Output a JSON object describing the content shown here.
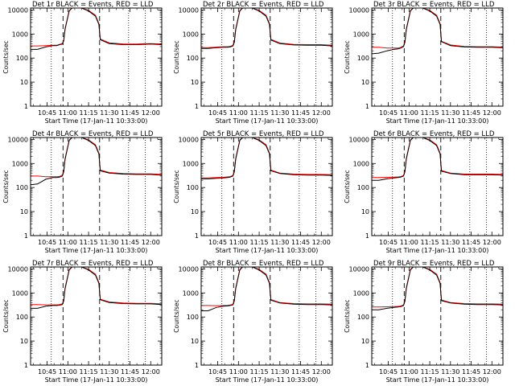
{
  "x_axis": {
    "ticks": [
      "10:45",
      "11:00",
      "11:15",
      "11:30",
      "11:45",
      "12:00"
    ],
    "tick_minutes_since_1030": [
      15,
      30,
      45,
      60,
      75,
      90
    ],
    "label": "Start Time (17-Jan-11 10:33:00)",
    "range_minutes_since_1030": [
      3,
      98
    ]
  },
  "y_axis": {
    "scale": "log",
    "ticks": [
      "1",
      "10",
      "100",
      "1000",
      "10000"
    ],
    "tick_values": [
      1,
      10,
      100,
      1000,
      10000
    ],
    "label": "Counts/sec",
    "range": [
      1,
      12000
    ]
  },
  "colors": {
    "events": "#000000",
    "lld": "#ff0000",
    "axes": "#000000"
  },
  "markers": {
    "dashed_vertical_minutes": [
      26.5,
      53
    ],
    "dotted_vertical_minutes": [
      18,
      74,
      86
    ]
  },
  "chart_data": [
    {
      "type": "line",
      "title": "Det 1r BLACK = Events, RED = LLD",
      "xlabel": "Start Time (17-Jan-11 10:33:00)",
      "ylabel": "Counts/sec",
      "yscale": "log",
      "series": [
        {
          "name": "Events",
          "color": "#000000",
          "x": [
            3,
            8,
            14,
            19,
            22,
            24,
            26,
            27,
            28,
            31,
            33,
            36,
            40,
            45,
            50,
            52.5,
            53.5,
            60,
            70,
            80,
            90,
            98
          ],
          "y": [
            230,
            230,
            290,
            330,
            330,
            360,
            380,
            520,
            1600,
            9000,
            12000,
            12000,
            12000,
            9000,
            5500,
            2500,
            580,
            400,
            360,
            360,
            380,
            360
          ]
        },
        {
          "name": "LLD",
          "color": "#ff0000",
          "x": [
            3,
            8,
            14,
            19,
            22,
            24,
            26,
            27,
            28,
            31,
            33,
            36,
            40,
            45,
            50,
            52.5,
            53.5,
            60,
            70,
            80,
            90,
            98
          ],
          "y": [
            320,
            320,
            330,
            340,
            340,
            370,
            400,
            560,
            1700,
            9500,
            12000,
            12000,
            12000,
            9500,
            6000,
            2700,
            620,
            430,
            380,
            380,
            400,
            380
          ]
        }
      ]
    },
    {
      "type": "line",
      "title": "Det 2r BLACK = Events, RED = LLD",
      "xlabel": "Start Time (17-Jan-11 10:33:00)",
      "ylabel": "Counts/sec",
      "yscale": "log",
      "series": [
        {
          "name": "Events",
          "color": "#000000",
          "x": [
            3,
            8,
            14,
            19,
            22,
            24,
            26,
            27,
            28,
            31,
            33,
            36,
            40,
            45,
            50,
            52.5,
            53.5,
            60,
            70,
            80,
            90,
            98
          ],
          "y": [
            250,
            250,
            270,
            280,
            280,
            290,
            320,
            450,
            1500,
            9000,
            12000,
            12000,
            12000,
            9000,
            5500,
            2500,
            560,
            400,
            350,
            340,
            340,
            320
          ]
        },
        {
          "name": "LLD",
          "color": "#ff0000",
          "x": [
            3,
            8,
            14,
            19,
            22,
            24,
            26,
            27,
            28,
            31,
            33,
            36,
            40,
            45,
            50,
            52.5,
            53.5,
            60,
            70,
            80,
            90,
            98
          ],
          "y": [
            270,
            270,
            285,
            295,
            295,
            305,
            340,
            480,
            1600,
            9500,
            12000,
            12000,
            12000,
            9500,
            6000,
            2700,
            600,
            420,
            370,
            360,
            360,
            340
          ]
        }
      ]
    },
    {
      "type": "line",
      "title": "Det 3r BLACK = Events, RED = LLD",
      "xlabel": "Start Time (17-Jan-11 10:33:00)",
      "ylabel": "Counts/sec",
      "yscale": "log",
      "series": [
        {
          "name": "Events",
          "color": "#000000",
          "x": [
            3,
            8,
            14,
            19,
            22,
            24,
            26,
            27,
            28,
            31,
            33,
            36,
            40,
            45,
            50,
            52.5,
            53.5,
            60,
            70,
            80,
            90,
            98
          ],
          "y": [
            150,
            160,
            200,
            230,
            240,
            260,
            300,
            450,
            1500,
            9000,
            12000,
            12000,
            12000,
            9000,
            5500,
            2500,
            480,
            330,
            290,
            280,
            280,
            270
          ]
        },
        {
          "name": "LLD",
          "color": "#ff0000",
          "x": [
            3,
            8,
            14,
            19,
            22,
            24,
            26,
            27,
            28,
            31,
            33,
            36,
            40,
            45,
            50,
            52.5,
            53.5,
            60,
            70,
            80,
            90,
            98
          ],
          "y": [
            280,
            280,
            260,
            260,
            260,
            275,
            320,
            480,
            1600,
            9500,
            12000,
            12000,
            12000,
            9500,
            6000,
            2700,
            500,
            350,
            305,
            295,
            295,
            285
          ]
        }
      ]
    },
    {
      "type": "line",
      "title": "Det 4r BLACK = Events, RED = LLD",
      "xlabel": "Start Time (17-Jan-11 10:33:00)",
      "ylabel": "Counts/sec",
      "yscale": "log",
      "series": [
        {
          "name": "Events",
          "color": "#000000",
          "x": [
            3,
            8,
            14,
            19,
            22,
            24,
            26,
            27,
            28,
            31,
            33,
            36,
            40,
            45,
            50,
            52.5,
            53.5,
            60,
            70,
            80,
            90,
            98
          ],
          "y": [
            130,
            140,
            220,
            260,
            260,
            270,
            300,
            450,
            1500,
            9000,
            12000,
            12000,
            12000,
            9000,
            5500,
            2500,
            500,
            400,
            360,
            350,
            350,
            330
          ]
        },
        {
          "name": "LLD",
          "color": "#ff0000",
          "x": [
            3,
            8,
            14,
            19,
            22,
            24,
            26,
            27,
            28,
            31,
            33,
            36,
            40,
            45,
            50,
            52.5,
            53.5,
            60,
            70,
            80,
            90,
            98
          ],
          "y": [
            300,
            300,
            280,
            280,
            280,
            290,
            330,
            480,
            1600,
            9500,
            12000,
            12000,
            12000,
            9500,
            6000,
            2700,
            530,
            420,
            380,
            370,
            370,
            350
          ]
        }
      ]
    },
    {
      "type": "line",
      "title": "Det 5r BLACK = Events, RED = LLD",
      "xlabel": "Start Time (17-Jan-11 10:33:00)",
      "ylabel": "Counts/sec",
      "yscale": "log",
      "series": [
        {
          "name": "Events",
          "color": "#000000",
          "x": [
            3,
            8,
            14,
            19,
            22,
            24,
            26,
            27,
            28,
            31,
            33,
            36,
            40,
            45,
            50,
            52.5,
            53.5,
            60,
            70,
            80,
            90,
            98
          ],
          "y": [
            230,
            230,
            240,
            250,
            260,
            270,
            300,
            450,
            1500,
            9000,
            12000,
            12000,
            12000,
            9000,
            5500,
            2500,
            500,
            380,
            340,
            330,
            330,
            320
          ]
        },
        {
          "name": "LLD",
          "color": "#ff0000",
          "x": [
            3,
            8,
            14,
            19,
            22,
            24,
            26,
            27,
            28,
            31,
            33,
            36,
            40,
            45,
            50,
            52.5,
            53.5,
            60,
            70,
            80,
            90,
            98
          ],
          "y": [
            250,
            250,
            260,
            265,
            275,
            285,
            320,
            480,
            1600,
            9500,
            12000,
            12000,
            12000,
            9500,
            6000,
            2700,
            530,
            400,
            360,
            350,
            350,
            340
          ]
        }
      ]
    },
    {
      "type": "line",
      "title": "Det 6r BLACK = Events, RED = LLD",
      "xlabel": "Start Time (17-Jan-11 10:33:00)",
      "ylabel": "Counts/sec",
      "yscale": "log",
      "series": [
        {
          "name": "Events",
          "color": "#000000",
          "x": [
            3,
            8,
            14,
            19,
            22,
            24,
            26,
            27,
            28,
            31,
            33,
            36,
            40,
            45,
            50,
            52.5,
            53.5,
            60,
            70,
            80,
            90,
            98
          ],
          "y": [
            200,
            200,
            230,
            250,
            260,
            270,
            300,
            450,
            1500,
            9000,
            12000,
            12000,
            12000,
            9000,
            5500,
            2500,
            480,
            380,
            340,
            340,
            340,
            330
          ]
        },
        {
          "name": "LLD",
          "color": "#ff0000",
          "x": [
            3,
            8,
            14,
            19,
            22,
            24,
            26,
            27,
            28,
            31,
            33,
            36,
            40,
            45,
            50,
            52.5,
            53.5,
            60,
            70,
            80,
            90,
            98
          ],
          "y": [
            260,
            260,
            265,
            270,
            275,
            285,
            320,
            480,
            1600,
            9500,
            12000,
            12000,
            12000,
            9500,
            6000,
            2700,
            510,
            400,
            360,
            360,
            360,
            350
          ]
        }
      ]
    },
    {
      "type": "line",
      "title": "Det 7r BLACK = Events, RED = LLD",
      "xlabel": "Start Time (17-Jan-11 10:33:00)",
      "ylabel": "Counts/sec",
      "yscale": "log",
      "series": [
        {
          "name": "Events",
          "color": "#000000",
          "x": [
            3,
            8,
            14,
            19,
            22,
            24,
            26,
            27,
            28,
            31,
            33,
            36,
            40,
            45,
            50,
            52.5,
            53.5,
            60,
            70,
            80,
            90,
            98
          ],
          "y": [
            230,
            230,
            280,
            300,
            300,
            310,
            330,
            470,
            1500,
            9000,
            12000,
            12000,
            12000,
            9000,
            5500,
            2500,
            520,
            400,
            360,
            350,
            350,
            330
          ]
        },
        {
          "name": "LLD",
          "color": "#ff0000",
          "x": [
            3,
            8,
            14,
            19,
            22,
            24,
            26,
            27,
            28,
            31,
            33,
            36,
            40,
            45,
            50,
            52.5,
            53.5,
            60,
            70,
            80,
            90,
            98
          ],
          "y": [
            330,
            330,
            320,
            320,
            320,
            330,
            350,
            500,
            1600,
            9500,
            12000,
            12000,
            12000,
            9500,
            6000,
            2700,
            550,
            420,
            380,
            370,
            370,
            350
          ]
        }
      ]
    },
    {
      "type": "line",
      "title": "Det 8r BLACK = Events, RED = LLD",
      "xlabel": "Start Time (17-Jan-11 10:33:00)",
      "ylabel": "Counts/sec",
      "yscale": "log",
      "series": [
        {
          "name": "Events",
          "color": "#000000",
          "x": [
            3,
            8,
            14,
            19,
            22,
            24,
            26,
            27,
            28,
            31,
            33,
            36,
            40,
            45,
            50,
            52.5,
            53.5,
            60,
            70,
            80,
            90,
            98
          ],
          "y": [
            180,
            180,
            250,
            280,
            290,
            300,
            320,
            470,
            1500,
            9000,
            12000,
            12000,
            12000,
            9000,
            5500,
            2500,
            500,
            380,
            340,
            330,
            330,
            320
          ]
        },
        {
          "name": "LLD",
          "color": "#ff0000",
          "x": [
            3,
            8,
            14,
            19,
            22,
            24,
            26,
            27,
            28,
            31,
            33,
            36,
            40,
            45,
            50,
            52.5,
            53.5,
            60,
            70,
            80,
            90,
            98
          ],
          "y": [
            300,
            300,
            295,
            300,
            305,
            315,
            340,
            500,
            1600,
            9500,
            12000,
            12000,
            12000,
            9500,
            6000,
            2700,
            530,
            400,
            360,
            350,
            350,
            340
          ]
        }
      ]
    },
    {
      "type": "line",
      "title": "Det 9r BLACK = Events, RED = LLD",
      "xlabel": "Start Time (17-Jan-11 10:33:00)",
      "ylabel": "Counts/sec",
      "yscale": "log",
      "series": [
        {
          "name": "Events",
          "color": "#000000",
          "x": [
            3,
            8,
            14,
            19,
            22,
            24,
            26,
            27,
            28,
            31,
            33,
            36,
            40,
            45,
            50,
            52.5,
            53.5,
            60,
            70,
            80,
            90,
            98
          ],
          "y": [
            200,
            200,
            230,
            250,
            260,
            270,
            300,
            450,
            1500,
            9000,
            12000,
            12000,
            12000,
            9000,
            5500,
            2500,
            480,
            380,
            340,
            330,
            330,
            320
          ]
        },
        {
          "name": "LLD",
          "color": "#ff0000",
          "x": [
            3,
            8,
            14,
            19,
            22,
            24,
            26,
            27,
            28,
            31,
            33,
            36,
            40,
            45,
            50,
            52.5,
            53.5,
            60,
            70,
            80,
            90,
            98
          ],
          "y": [
            260,
            260,
            265,
            270,
            275,
            285,
            320,
            480,
            1600,
            9500,
            12000,
            12000,
            12000,
            9500,
            6000,
            2700,
            510,
            400,
            360,
            350,
            350,
            340
          ]
        }
      ]
    }
  ]
}
